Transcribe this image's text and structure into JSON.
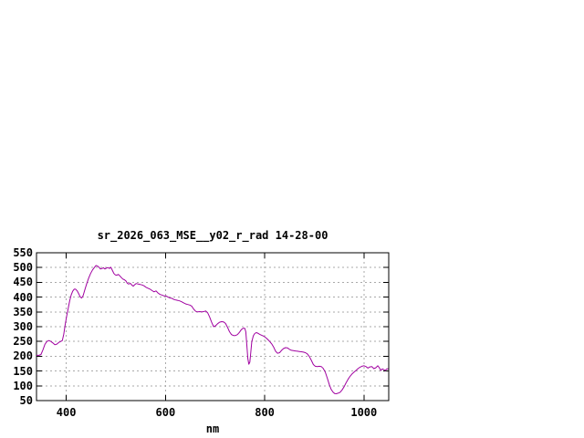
{
  "window": {
    "background": "#ffffff"
  },
  "chart_data": {
    "type": "line",
    "title": "sr_2026_063_MSE__y02_r_rad 14-28-00",
    "xlabel": "nm",
    "ylabel": "",
    "xlim": [
      340,
      1050
    ],
    "ylim": [
      50,
      550
    ],
    "xticks": [
      400,
      600,
      800,
      1000
    ],
    "yticks": [
      50,
      100,
      150,
      200,
      250,
      300,
      350,
      400,
      450,
      500,
      550
    ],
    "grid": {
      "show": true,
      "style": "dashed",
      "color": "#aaaaaa"
    },
    "frame_color": "#000000",
    "text_color": "#000000",
    "legend": "none",
    "series": [
      {
        "name": "spectral-radiance-curve",
        "color": "#a000a0",
        "points": [
          [
            340,
            203
          ],
          [
            345,
            203
          ],
          [
            349,
            206
          ],
          [
            353,
            222
          ],
          [
            357,
            240
          ],
          [
            361,
            250
          ],
          [
            365,
            253
          ],
          [
            369,
            250
          ],
          [
            373,
            245
          ],
          [
            377,
            239
          ],
          [
            381,
            241
          ],
          [
            385,
            247
          ],
          [
            389,
            250
          ],
          [
            392,
            253
          ],
          [
            395,
            275
          ],
          [
            398,
            308
          ],
          [
            401,
            338
          ],
          [
            404,
            363
          ],
          [
            407,
            388
          ],
          [
            410,
            408
          ],
          [
            413,
            420
          ],
          [
            416,
            427
          ],
          [
            419,
            427
          ],
          [
            422,
            421
          ],
          [
            425,
            412
          ],
          [
            428,
            401
          ],
          [
            431,
            397
          ],
          [
            434,
            405
          ],
          [
            437,
            422
          ],
          [
            441,
            444
          ],
          [
            445,
            464
          ],
          [
            449,
            480
          ],
          [
            453,
            492
          ],
          [
            457,
            501
          ],
          [
            460,
            507
          ],
          [
            463,
            505
          ],
          [
            466,
            501
          ],
          [
            469,
            495
          ],
          [
            472,
            497
          ],
          [
            475,
            499
          ],
          [
            478,
            495
          ],
          [
            481,
            498
          ],
          [
            484,
            500
          ],
          [
            487,
            497
          ],
          [
            490,
            501
          ],
          [
            493,
            490
          ],
          [
            496,
            480
          ],
          [
            499,
            475
          ],
          [
            502,
            474
          ],
          [
            505,
            477
          ],
          [
            508,
            472
          ],
          [
            511,
            466
          ],
          [
            514,
            461
          ],
          [
            517,
            459
          ],
          [
            520,
            455
          ],
          [
            523,
            447
          ],
          [
            526,
            444
          ],
          [
            529,
            447
          ],
          [
            532,
            441
          ],
          [
            535,
            437
          ],
          [
            538,
            442
          ],
          [
            541,
            446
          ],
          [
            545,
            444
          ],
          [
            549,
            443
          ],
          [
            553,
            441
          ],
          [
            557,
            438
          ],
          [
            561,
            433
          ],
          [
            565,
            430
          ],
          [
            569,
            427
          ],
          [
            573,
            422
          ],
          [
            577,
            418
          ],
          [
            581,
            421
          ],
          [
            585,
            414
          ],
          [
            589,
            409
          ],
          [
            593,
            407
          ],
          [
            597,
            404
          ],
          [
            601,
            404
          ],
          [
            605,
            400
          ],
          [
            609,
            397
          ],
          [
            613,
            396
          ],
          [
            617,
            392
          ],
          [
            621,
            390
          ],
          [
            625,
            389
          ],
          [
            629,
            387
          ],
          [
            633,
            384
          ],
          [
            637,
            380
          ],
          [
            641,
            377
          ],
          [
            645,
            375
          ],
          [
            649,
            373
          ],
          [
            653,
            369
          ],
          [
            657,
            359
          ],
          [
            661,
            352
          ],
          [
            665,
            350
          ],
          [
            669,
            351
          ],
          [
            673,
            350
          ],
          [
            677,
            351
          ],
          [
            681,
            353
          ],
          [
            685,
            347
          ],
          [
            689,
            333
          ],
          [
            693,
            315
          ],
          [
            697,
            300
          ],
          [
            701,
            303
          ],
          [
            705,
            310
          ],
          [
            709,
            315
          ],
          [
            713,
            317
          ],
          [
            717,
            316
          ],
          [
            721,
            311
          ],
          [
            725,
            298
          ],
          [
            729,
            283
          ],
          [
            733,
            273
          ],
          [
            737,
            270
          ],
          [
            741,
            270
          ],
          [
            745,
            273
          ],
          [
            749,
            281
          ],
          [
            753,
            290
          ],
          [
            757,
            295
          ],
          [
            760,
            294
          ],
          [
            762,
            282
          ],
          [
            764,
            238
          ],
          [
            766,
            192
          ],
          [
            768,
            173
          ],
          [
            770,
            180
          ],
          [
            772,
            215
          ],
          [
            774,
            248
          ],
          [
            777,
            269
          ],
          [
            780,
            277
          ],
          [
            783,
            280
          ],
          [
            786,
            278
          ],
          [
            790,
            274
          ],
          [
            794,
            271
          ],
          [
            798,
            268
          ],
          [
            802,
            263
          ],
          [
            806,
            257
          ],
          [
            810,
            250
          ],
          [
            814,
            242
          ],
          [
            818,
            231
          ],
          [
            822,
            217
          ],
          [
            826,
            210
          ],
          [
            830,
            212
          ],
          [
            834,
            220
          ],
          [
            838,
            226
          ],
          [
            842,
            229
          ],
          [
            846,
            228
          ],
          [
            850,
            223
          ],
          [
            854,
            220
          ],
          [
            858,
            219
          ],
          [
            862,
            218
          ],
          [
            866,
            217
          ],
          [
            870,
            216
          ],
          [
            874,
            215
          ],
          [
            878,
            214
          ],
          [
            882,
            212
          ],
          [
            886,
            208
          ],
          [
            890,
            199
          ],
          [
            894,
            186
          ],
          [
            898,
            172
          ],
          [
            902,
            166
          ],
          [
            906,
            165
          ],
          [
            910,
            166
          ],
          [
            914,
            165
          ],
          [
            918,
            159
          ],
          [
            922,
            147
          ],
          [
            926,
            127
          ],
          [
            930,
            105
          ],
          [
            934,
            88
          ],
          [
            938,
            78
          ],
          [
            941,
            74
          ],
          [
            944,
            73
          ],
          [
            948,
            75
          ],
          [
            952,
            78
          ],
          [
            956,
            86
          ],
          [
            960,
            97
          ],
          [
            964,
            110
          ],
          [
            968,
            122
          ],
          [
            972,
            132
          ],
          [
            976,
            140
          ],
          [
            980,
            146
          ],
          [
            984,
            152
          ],
          [
            988,
            158
          ],
          [
            992,
            163
          ],
          [
            996,
            166
          ],
          [
            1000,
            168
          ],
          [
            1004,
            165
          ],
          [
            1008,
            160
          ],
          [
            1012,
            164
          ],
          [
            1016,
            165
          ],
          [
            1020,
            158
          ],
          [
            1024,
            161
          ],
          [
            1028,
            168
          ],
          [
            1031,
            161
          ],
          [
            1034,
            152
          ],
          [
            1037,
            157
          ],
          [
            1040,
            155
          ],
          [
            1043,
            152
          ],
          [
            1046,
            157
          ],
          [
            1049,
            157
          ]
        ]
      }
    ]
  }
}
